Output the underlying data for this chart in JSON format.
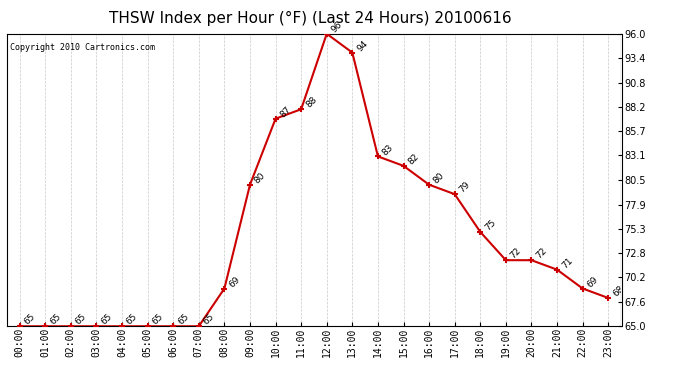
{
  "title": "THSW Index per Hour (°F) (Last 24 Hours) 20100616",
  "copyright": "Copyright 2010 Cartronics.com",
  "hours": [
    0,
    1,
    2,
    3,
    4,
    5,
    6,
    7,
    8,
    9,
    10,
    11,
    12,
    13,
    14,
    15,
    16,
    17,
    18,
    19,
    20,
    21,
    22,
    23
  ],
  "values": [
    65,
    65,
    65,
    65,
    65,
    65,
    65,
    65,
    69,
    80,
    87,
    88,
    96,
    94,
    83,
    82,
    80,
    79,
    75,
    72,
    72,
    71,
    69,
    68
  ],
  "xlabels": [
    "00:00",
    "01:00",
    "02:00",
    "03:00",
    "04:00",
    "05:00",
    "06:00",
    "07:00",
    "08:00",
    "09:00",
    "10:00",
    "11:00",
    "12:00",
    "13:00",
    "14:00",
    "15:00",
    "16:00",
    "17:00",
    "18:00",
    "19:00",
    "20:00",
    "21:00",
    "22:00",
    "23:00"
  ],
  "yticks": [
    65.0,
    67.6,
    70.2,
    72.8,
    75.3,
    77.9,
    80.5,
    83.1,
    85.7,
    88.2,
    90.8,
    93.4,
    96.0
  ],
  "ylim": [
    65.0,
    96.0
  ],
  "line_color": "#cc0000",
  "marker_color": "#cc0000",
  "bg_color": "#ffffff",
  "grid_color": "#bbbbbb",
  "title_fontsize": 11,
  "label_fontsize": 7,
  "annotation_fontsize": 6.5,
  "copyright_fontsize": 6
}
